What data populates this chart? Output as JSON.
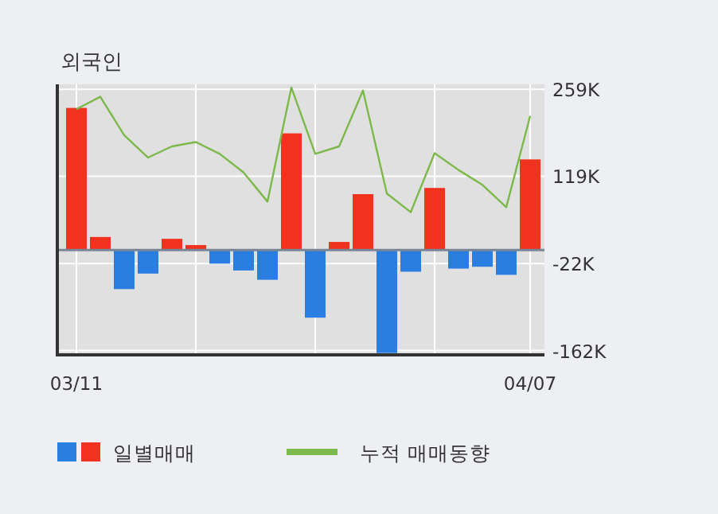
{
  "chart_data": {
    "type": "bar",
    "title": "외국인",
    "categories": [
      "03/11",
      null,
      null,
      null,
      null,
      null,
      null,
      null,
      null,
      null,
      null,
      null,
      null,
      null,
      null,
      null,
      null,
      null,
      null,
      "04/07"
    ],
    "series": [
      {
        "name": "일별매매",
        "colors": [
          "#f0321e",
          "#f0321e",
          "#2a7de1",
          "#2a7de1",
          "#f0321e",
          "#f0321e",
          "#2a7de1",
          "#2a7de1",
          "#2a7de1",
          "#f0321e",
          "#2a7de1",
          "#f0321e",
          "#f0321e",
          "#2a7de1",
          "#2a7de1",
          "#f0321e",
          "#2a7de1",
          "#2a7de1",
          "#2a7de1",
          "#f0321e"
        ],
        "values": [
          229,
          21,
          -63,
          -38,
          18,
          8,
          -22,
          -33,
          -48,
          188,
          -109,
          13,
          90,
          -166,
          -35,
          100,
          -30,
          -27,
          -40,
          146
        ]
      },
      {
        "name": "누적 매매동향",
        "type": "line",
        "color": "#7cb84a",
        "values": [
          227,
          247,
          185,
          149,
          167,
          174,
          155,
          125,
          78,
          262,
          155,
          167,
          257,
          91,
          61,
          156,
          129,
          105,
          69,
          216
        ]
      }
    ],
    "ylim": [
      -169,
      267
    ],
    "yticks": [
      {
        "value": 259,
        "label": "259K"
      },
      {
        "value": 119,
        "label": "119K"
      },
      {
        "value": -22,
        "label": "-22K"
      },
      {
        "value": -162,
        "label": "-162K"
      }
    ],
    "grid": true,
    "legend": "bottom",
    "marker": "none"
  }
}
